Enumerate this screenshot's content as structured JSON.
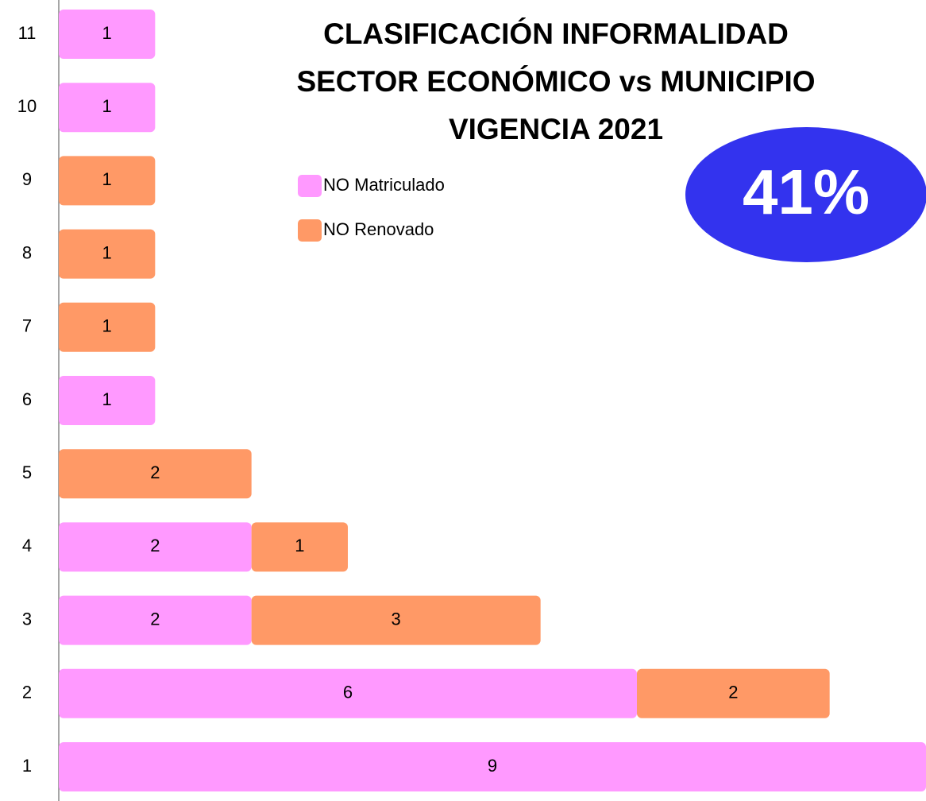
{
  "chart_data": {
    "type": "hbar_stacked",
    "title": [
      "CLASIFICACIÓN INFORMALIDAD",
      "SECTOR ECONÓMICO vs MUNICIPIO",
      "VIGENCIA 2021"
    ],
    "annotation": "41%",
    "categories": [
      "1",
      "2",
      "3",
      "4",
      "5",
      "6",
      "7",
      "8",
      "9",
      "10",
      "11"
    ],
    "series": [
      {
        "name": "NO Matriculado",
        "color": "#ff99ff",
        "values": [
          9,
          6,
          2,
          2,
          null,
          1,
          null,
          null,
          null,
          1,
          1
        ]
      },
      {
        "name": "NO Renovado",
        "color": "#ff9966",
        "values": [
          null,
          2,
          3,
          1,
          2,
          null,
          1,
          1,
          1,
          null,
          null
        ]
      }
    ],
    "xlim": [
      0,
      9
    ]
  }
}
